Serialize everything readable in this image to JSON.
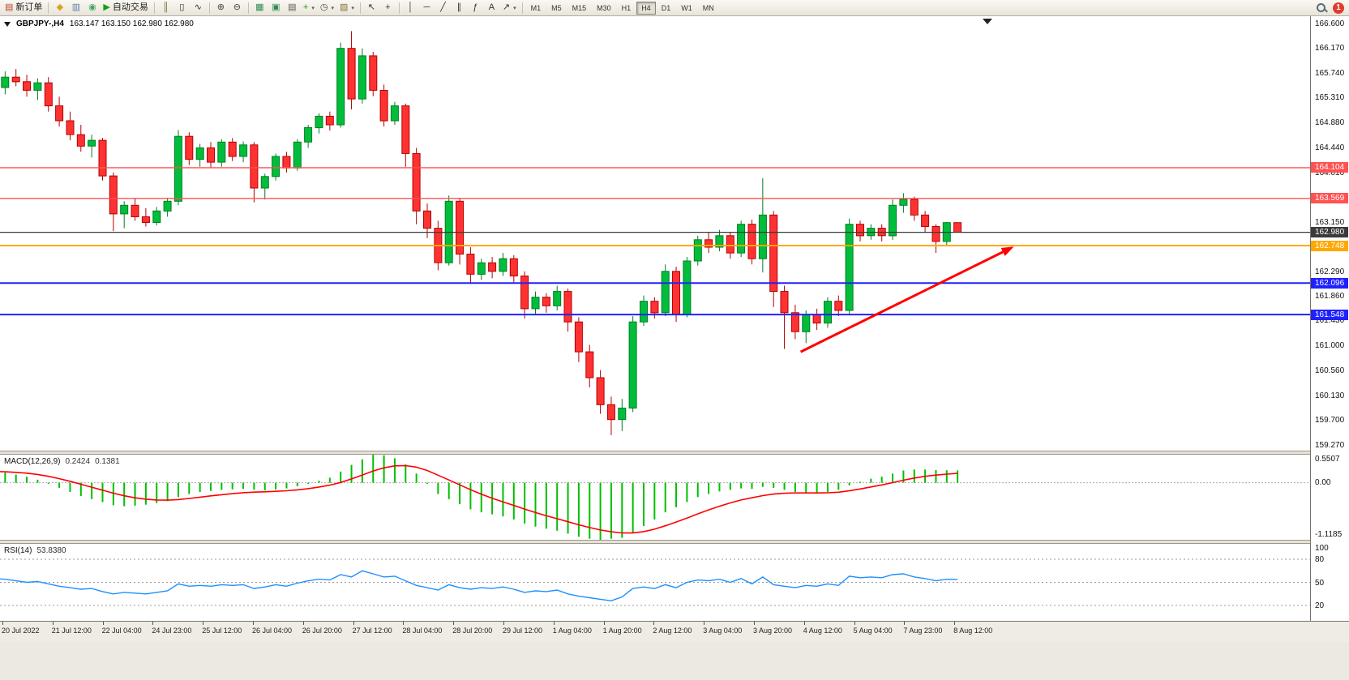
{
  "toolbar": {
    "notification_count": "1",
    "timeframes": [
      "M1",
      "M5",
      "M15",
      "M30",
      "H1",
      "H4",
      "D1",
      "W1",
      "MN"
    ],
    "active_timeframe": "H4",
    "items": [
      {
        "kind": "button",
        "name": "new-order-button",
        "glyph": "▤",
        "color": "#b8442c",
        "label": "新订单"
      },
      {
        "kind": "sep"
      },
      {
        "kind": "button",
        "name": "chart-profiles-button",
        "glyph": "◆",
        "color": "#d9a520"
      },
      {
        "kind": "button",
        "name": "market-watch-button",
        "glyph": "▥",
        "color": "#5b7fa6"
      },
      {
        "kind": "button",
        "name": "data-window-button",
        "glyph": "◉",
        "color": "#3fa75f"
      },
      {
        "kind": "button",
        "name": "autotrading-button",
        "glyph": "▶",
        "color": "#12a012",
        "label": "自动交易"
      },
      {
        "kind": "sep"
      },
      {
        "kind": "button",
        "name": "bar-chart-button",
        "glyph": "║",
        "color": "#6e6e32"
      },
      {
        "kind": "button",
        "name": "candlestick-chart-button",
        "glyph": "▯",
        "color": "#333333"
      },
      {
        "kind": "button",
        "name": "line-chart-button",
        "glyph": "∿",
        "color": "#333333"
      },
      {
        "kind": "sep"
      },
      {
        "kind": "button",
        "name": "zoom-in-button",
        "glyph": "⊕",
        "color": "#444444"
      },
      {
        "kind": "button",
        "name": "zoom-out-button",
        "glyph": "⊖",
        "color": "#444444"
      },
      {
        "kind": "sep"
      },
      {
        "kind": "button",
        "name": "tile-windows-button",
        "glyph": "▦",
        "color": "#2e8b57"
      },
      {
        "kind": "button",
        "name": "new-chart-button",
        "glyph": "▣",
        "color": "#2e8b57"
      },
      {
        "kind": "button",
        "name": "chart-list-button",
        "glyph": "▤",
        "color": "#555555"
      },
      {
        "kind": "button",
        "name": "indicators-button",
        "glyph": "+",
        "color": "#00a000",
        "caret": true
      },
      {
        "kind": "button",
        "name": "periods-button",
        "glyph": "◷",
        "color": "#444444",
        "caret": true
      },
      {
        "kind": "button",
        "name": "templates-button",
        "glyph": "▨",
        "color": "#8a6f3e",
        "caret": true
      },
      {
        "kind": "sep"
      },
      {
        "kind": "button",
        "name": "cursor-button",
        "glyph": "↖",
        "color": "#333333"
      },
      {
        "kind": "button",
        "name": "crosshair-button",
        "glyph": "+",
        "color": "#333333"
      },
      {
        "kind": "sep"
      },
      {
        "kind": "button",
        "name": "vertical-line-button",
        "glyph": "│",
        "color": "#333333"
      },
      {
        "kind": "button",
        "name": "horizontal-line-button",
        "glyph": "─",
        "color": "#333333"
      },
      {
        "kind": "button",
        "name": "trendline-button",
        "glyph": "╱",
        "color": "#333333"
      },
      {
        "kind": "button",
        "name": "channel-button",
        "glyph": "∥",
        "color": "#333333"
      },
      {
        "kind": "button",
        "name": "fibonacci-button",
        "glyph": "ƒ",
        "color": "#333333"
      },
      {
        "kind": "button",
        "name": "text-button",
        "glyph": "A",
        "color": "#333333"
      },
      {
        "kind": "button",
        "name": "arrows-button",
        "glyph": "↗",
        "color": "#333333",
        "caret": true
      },
      {
        "kind": "sep"
      }
    ]
  },
  "price_axis": {
    "ticks": [
      "166.600",
      "166.170",
      "165.740",
      "165.310",
      "164.880",
      "164.440",
      "164.010",
      "163.150",
      "162.290",
      "161.860",
      "161.430",
      "161.000",
      "160.560",
      "160.130",
      "159.700",
      "159.270"
    ]
  },
  "time_axis": {
    "labels": [
      "20 Jul 2022",
      "21 Jul 12:00",
      "22 Jul 04:00",
      "24 Jul 23:00",
      "25 Jul 12:00",
      "26 Jul 04:00",
      "26 Jul 20:00",
      "27 Jul 12:00",
      "28 Jul 04:00",
      "28 Jul 20:00",
      "29 Jul 12:00",
      "1 Aug 04:00",
      "1 Aug 20:00",
      "2 Aug 12:00",
      "3 Aug 04:00",
      "3 Aug 20:00",
      "4 Aug 12:00",
      "5 Aug 04:00",
      "7 Aug 23:00",
      "8 Aug 12:00"
    ]
  },
  "chart_data": [
    {
      "type": "candlestick",
      "symbol_period": "GBPJPY-,H4",
      "ohlc_display": "163.147 163.150 162.980 162.980",
      "ylim": [
        159.18,
        166.74
      ],
      "colors": {
        "up": "#00BE3C",
        "up_edge": "#007d23",
        "down": "#FF3232",
        "down_edge": "#b40000"
      },
      "levels": [
        {
          "price": 164.104,
          "label": "164.104",
          "color": "#ff5252",
          "width": 1.4
        },
        {
          "price": 163.569,
          "label": "163.569",
          "color": "#ff5252",
          "width": 1.4
        },
        {
          "price": 162.98,
          "label": "162.980",
          "color": "#3a3a3a",
          "width": 1.2
        },
        {
          "price": 162.748,
          "label": "162.748",
          "color": "#ffa800",
          "width": 2
        },
        {
          "price": 162.096,
          "label": "162.096",
          "color": "#2020ff",
          "width": 2
        },
        {
          "price": 161.548,
          "label": "161.548",
          "color": "#2020ff",
          "width": 2
        }
      ],
      "trend_arrow": {
        "from_bar": 74.5,
        "from_price": 160.9,
        "to_bar": 94.2,
        "to_price": 162.73,
        "color": "#ff0000"
      },
      "candles": [
        [
          165.9,
          165.95,
          165.42,
          165.52
        ],
        [
          165.5,
          165.78,
          165.38,
          165.68
        ],
        [
          165.68,
          165.82,
          165.52,
          165.6
        ],
        [
          165.6,
          165.72,
          165.34,
          165.45
        ],
        [
          165.45,
          165.66,
          165.28,
          165.58
        ],
        [
          165.58,
          165.68,
          165.08,
          165.18
        ],
        [
          165.18,
          165.34,
          164.82,
          164.92
        ],
        [
          164.92,
          165.08,
          164.58,
          164.68
        ],
        [
          164.68,
          164.85,
          164.38,
          164.48
        ],
        [
          164.48,
          164.68,
          164.28,
          164.58
        ],
        [
          164.58,
          164.62,
          163.88,
          163.96
        ],
        [
          163.96,
          164.02,
          163.0,
          163.3
        ],
        [
          163.3,
          163.52,
          163.05,
          163.45
        ],
        [
          163.45,
          163.58,
          163.18,
          163.25
        ],
        [
          163.25,
          163.4,
          163.08,
          163.15
        ],
        [
          163.15,
          163.42,
          163.1,
          163.35
        ],
        [
          163.35,
          163.58,
          163.25,
          163.52
        ],
        [
          163.52,
          164.76,
          163.45,
          164.65
        ],
        [
          164.65,
          164.72,
          164.15,
          164.25
        ],
        [
          164.25,
          164.52,
          164.12,
          164.45
        ],
        [
          164.45,
          164.55,
          164.1,
          164.2
        ],
        [
          164.2,
          164.6,
          164.12,
          164.55
        ],
        [
          164.55,
          164.62,
          164.22,
          164.3
        ],
        [
          164.3,
          164.56,
          164.2,
          164.5
        ],
        [
          164.5,
          164.55,
          163.5,
          163.75
        ],
        [
          163.75,
          164.0,
          163.55,
          163.95
        ],
        [
          163.95,
          164.35,
          163.88,
          164.3
        ],
        [
          164.3,
          164.38,
          164.02,
          164.1
        ],
        [
          164.1,
          164.6,
          164.05,
          164.55
        ],
        [
          164.55,
          164.85,
          164.45,
          164.8
        ],
        [
          164.8,
          165.05,
          164.7,
          165.0
        ],
        [
          165.0,
          165.08,
          164.75,
          164.85
        ],
        [
          164.85,
          166.28,
          164.8,
          166.18
        ],
        [
          166.18,
          166.48,
          165.12,
          165.3
        ],
        [
          165.3,
          166.18,
          165.22,
          166.05
        ],
        [
          166.05,
          166.12,
          165.35,
          165.45
        ],
        [
          165.45,
          165.55,
          164.82,
          164.92
        ],
        [
          164.92,
          165.25,
          164.85,
          165.18
        ],
        [
          165.18,
          165.22,
          164.12,
          164.35
        ],
        [
          164.35,
          164.45,
          163.12,
          163.35
        ],
        [
          163.35,
          163.48,
          162.88,
          163.05
        ],
        [
          163.05,
          163.18,
          162.32,
          162.45
        ],
        [
          162.45,
          163.62,
          162.4,
          163.52
        ],
        [
          163.52,
          163.58,
          162.42,
          162.6
        ],
        [
          162.6,
          162.72,
          162.08,
          162.25
        ],
        [
          162.25,
          162.52,
          162.15,
          162.45
        ],
        [
          162.45,
          162.55,
          162.18,
          162.3
        ],
        [
          162.3,
          162.62,
          162.22,
          162.52
        ],
        [
          162.52,
          162.58,
          162.1,
          162.22
        ],
        [
          162.22,
          162.3,
          161.48,
          161.65
        ],
        [
          161.65,
          161.95,
          161.55,
          161.85
        ],
        [
          161.85,
          161.92,
          161.58,
          161.7
        ],
        [
          161.7,
          162.05,
          161.62,
          161.95
        ],
        [
          161.95,
          162.0,
          161.25,
          161.42
        ],
        [
          161.42,
          161.5,
          160.72,
          160.9
        ],
        [
          160.9,
          161.02,
          160.28,
          160.45
        ],
        [
          160.45,
          160.58,
          159.82,
          159.98
        ],
        [
          159.98,
          160.12,
          159.45,
          159.72
        ],
        [
          159.72,
          160.08,
          159.52,
          159.92
        ],
        [
          159.92,
          161.52,
          159.85,
          161.42
        ],
        [
          161.42,
          161.88,
          161.35,
          161.78
        ],
        [
          161.78,
          161.85,
          161.48,
          161.58
        ],
        [
          161.58,
          162.42,
          161.52,
          162.3
        ],
        [
          162.3,
          162.38,
          161.42,
          161.55
        ],
        [
          161.55,
          162.55,
          161.5,
          162.48
        ],
        [
          162.48,
          162.92,
          162.4,
          162.85
        ],
        [
          162.85,
          162.98,
          162.62,
          162.72
        ],
        [
          162.72,
          163.02,
          162.65,
          162.92
        ],
        [
          162.92,
          162.98,
          162.52,
          162.62
        ],
        [
          162.62,
          163.18,
          162.55,
          163.12
        ],
        [
          163.12,
          163.2,
          162.42,
          162.52
        ],
        [
          162.52,
          163.92,
          162.28,
          163.28
        ],
        [
          163.28,
          163.35,
          161.68,
          161.95
        ],
        [
          161.95,
          162.05,
          160.95,
          161.58
        ],
        [
          161.58,
          161.72,
          161.12,
          161.25
        ],
        [
          161.25,
          161.62,
          161.05,
          161.55
        ],
        [
          161.55,
          161.65,
          161.28,
          161.4
        ],
        [
          161.4,
          161.85,
          161.32,
          161.78
        ],
        [
          161.78,
          161.88,
          161.52,
          161.62
        ],
        [
          161.62,
          163.22,
          161.55,
          163.12
        ],
        [
          163.12,
          163.18,
          162.82,
          162.92
        ],
        [
          162.92,
          163.12,
          162.85,
          163.05
        ],
        [
          163.05,
          163.12,
          162.82,
          162.92
        ],
        [
          162.92,
          163.55,
          162.85,
          163.45
        ],
        [
          163.45,
          163.66,
          163.32,
          163.55
        ],
        [
          163.55,
          163.6,
          163.18,
          163.28
        ],
        [
          163.28,
          163.35,
          162.98,
          163.08
        ],
        [
          163.08,
          163.12,
          162.62,
          162.82
        ],
        [
          162.82,
          163.16,
          162.76,
          163.147
        ],
        [
          163.147,
          163.15,
          162.98,
          162.98
        ]
      ]
    },
    {
      "type": "bar",
      "label": "MACD(12,26,9)",
      "value_main": "0.2424",
      "value_signal": "0.1381",
      "ylim": [
        -1.1185,
        0.5507
      ],
      "axis_labels": [
        "0.5507",
        "0.00",
        "-1.1185"
      ],
      "colors": {
        "histogram": "#00c000",
        "signal": "#ff0000"
      },
      "values": [
        0.22,
        0.2,
        0.16,
        0.12,
        0.06,
        -0.02,
        -0.1,
        -0.18,
        -0.26,
        -0.32,
        -0.38,
        -0.44,
        -0.46,
        -0.45,
        -0.43,
        -0.4,
        -0.36,
        -0.28,
        -0.22,
        -0.18,
        -0.16,
        -0.14,
        -0.13,
        -0.12,
        -0.14,
        -0.15,
        -0.13,
        -0.11,
        -0.07,
        -0.02,
        0.04,
        0.1,
        0.22,
        0.35,
        0.46,
        0.55,
        0.54,
        0.48,
        0.36,
        0.18,
        -0.02,
        -0.22,
        -0.32,
        -0.42,
        -0.52,
        -0.58,
        -0.62,
        -0.66,
        -0.72,
        -0.8,
        -0.86,
        -0.9,
        -0.94,
        -1.0,
        -1.06,
        -1.1,
        -1.1185,
        -1.1,
        -1.08,
        -0.98,
        -0.85,
        -0.72,
        -0.58,
        -0.48,
        -0.38,
        -0.28,
        -0.22,
        -0.17,
        -0.14,
        -0.11,
        -0.12,
        -0.08,
        -0.1,
        -0.14,
        -0.18,
        -0.2,
        -0.2,
        -0.18,
        -0.14,
        -0.05,
        0.02,
        0.08,
        0.12,
        0.18,
        0.24,
        0.26,
        0.26,
        0.25,
        0.245,
        0.2424
      ]
    },
    {
      "type": "line",
      "label": "RSI(14)",
      "value": "53.8380",
      "ylim": [
        0,
        100
      ],
      "axis_labels": [
        "100",
        "80",
        "50",
        "20"
      ],
      "levels": [
        80,
        50,
        20
      ],
      "colors": {
        "line": "#1e90ff",
        "level": "#999999"
      },
      "values": [
        55,
        54,
        52,
        50,
        51,
        48,
        45,
        43,
        41,
        42,
        38,
        35,
        37,
        36,
        35,
        37,
        39,
        48,
        45,
        46,
        45,
        47,
        46,
        47,
        42,
        44,
        47,
        45,
        49,
        52,
        54,
        53,
        60,
        57,
        65,
        61,
        57,
        58,
        52,
        46,
        43,
        40,
        47,
        43,
        41,
        43,
        42,
        44,
        41,
        37,
        39,
        38,
        40,
        35,
        32,
        30,
        28,
        26,
        31,
        42,
        44,
        42,
        47,
        43,
        50,
        53,
        52,
        54,
        50,
        55,
        48,
        57,
        47,
        45,
        43,
        46,
        45,
        48,
        46,
        58,
        56,
        57,
        56,
        60,
        61,
        57,
        55,
        52,
        54,
        53.838
      ]
    }
  ]
}
